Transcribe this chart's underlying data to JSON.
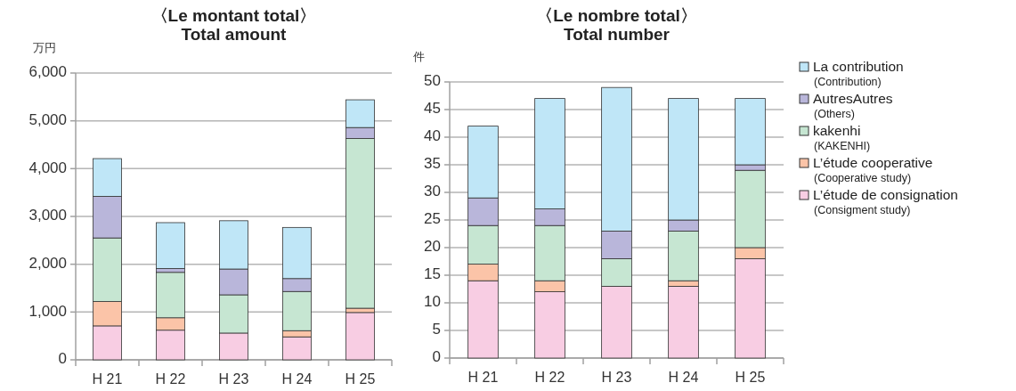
{
  "chart_data": [
    {
      "type": "bar",
      "stacked": true,
      "title": "〈Le montant total〉\nTotal amount",
      "ylabel": "万円",
      "categories": [
        "H 21",
        "H 22",
        "H 23",
        "H 24",
        "H 25"
      ],
      "ylim": [
        0,
        6000
      ],
      "yticks": [
        0,
        {
          "value": 1000,
          "label": "1,000"
        },
        {
          "value": 2000,
          "label": "2,000"
        },
        {
          "value": 3000,
          "label": "3,000"
        },
        {
          "value": 4000,
          "label": "4,000"
        },
        {
          "value": 5000,
          "label": "5,000"
        },
        {
          "value": 6000,
          "label": "6,000"
        }
      ],
      "grid": "y",
      "legend": false,
      "series": [
        {
          "color": "#f8cde3",
          "values": [
            710,
            620,
            560,
            480,
            990
          ]
        },
        {
          "color": "#fbc4a8",
          "values": [
            510,
            260,
            0,
            130,
            90
          ]
        },
        {
          "color": "#c6e6d2",
          "values": [
            1330,
            950,
            800,
            820,
            3550
          ]
        },
        {
          "color": "#b9b6da",
          "values": [
            870,
            80,
            540,
            270,
            230
          ]
        },
        {
          "color": "#bfe6f7",
          "values": [
            790,
            960,
            1010,
            1070,
            580
          ]
        }
      ]
    },
    {
      "type": "bar",
      "stacked": true,
      "title": "〈Le nombre total〉\nTotal number",
      "ylabel": "件",
      "categories": [
        "H 21",
        "H 22",
        "H 23",
        "H 24",
        "H 25"
      ],
      "ylim": [
        0,
        50
      ],
      "yticks": [
        0,
        5,
        10,
        15,
        20,
        25,
        30,
        35,
        40,
        45,
        50
      ],
      "grid": "y",
      "legend": "right",
      "series": [
        {
          "name": "L’étude de consignation\n(Consigment study)",
          "color": "#f8cde3",
          "values": [
            14,
            12,
            13,
            13,
            18
          ]
        },
        {
          "name": "L’étude cooperative\n(Cooperative study)",
          "color": "#fbc4a8",
          "values": [
            3,
            2,
            0,
            1,
            2
          ]
        },
        {
          "name": "kakenhi\n(KAKENHI)",
          "color": "#c6e6d2",
          "values": [
            7,
            10,
            5,
            9,
            14
          ]
        },
        {
          "name": "AutresAutres\n(Others)",
          "color": "#b9b6da",
          "values": [
            5,
            3,
            5,
            2,
            1
          ]
        },
        {
          "name": "La contribution\n(Contribution)",
          "color": "#bfe6f7",
          "values": [
            13,
            20,
            26,
            22,
            12
          ]
        }
      ]
    }
  ]
}
